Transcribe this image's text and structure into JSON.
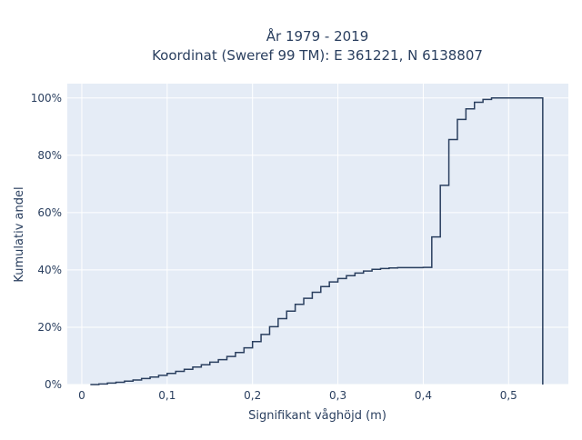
{
  "chart_data": {
    "type": "line",
    "line_shape": "step",
    "title_line1": "År 1979 - 2019",
    "title_line2": "Koordinat (Sweref 99 TM): E 361221, N 6138807",
    "xlabel": "Signifikant våghöjd (m)",
    "ylabel": "Kumulativ andel",
    "xlim": [
      -0.017,
      0.57
    ],
    "ylim": [
      0,
      1.05
    ],
    "x_tick_values": [
      0,
      0.1,
      0.2,
      0.3,
      0.4,
      0.5
    ],
    "x_tick_labels": [
      "0",
      "0,1",
      "0,2",
      "0,3",
      "0,4",
      "0,5"
    ],
    "y_tick_values": [
      0,
      0.2,
      0.4,
      0.6,
      0.8,
      1.0
    ],
    "y_tick_labels": [
      "0%",
      "20%",
      "40%",
      "60%",
      "80%",
      "100%"
    ],
    "grid": true,
    "colors": {
      "plot_bg": "#e5ecf6",
      "grid": "#ffffff",
      "line": "#2a3f5f"
    },
    "series": [
      {
        "x": [
          0.01,
          0.02,
          0.03,
          0.04,
          0.05,
          0.06,
          0.07,
          0.08,
          0.09,
          0.1,
          0.11,
          0.12,
          0.13,
          0.14,
          0.15,
          0.16,
          0.17,
          0.18,
          0.19,
          0.2,
          0.21,
          0.22,
          0.23,
          0.24,
          0.25,
          0.26,
          0.27,
          0.28,
          0.29,
          0.3,
          0.31,
          0.32,
          0.33,
          0.34,
          0.35,
          0.36,
          0.37,
          0.38,
          0.39,
          0.4,
          0.41,
          0.42,
          0.43,
          0.44,
          0.45,
          0.46,
          0.47,
          0.48,
          0.49,
          0.5,
          0.51,
          0.52,
          0.53,
          0.54
        ],
        "y": [
          0.0,
          0.002,
          0.005,
          0.008,
          0.012,
          0.016,
          0.021,
          0.026,
          0.032,
          0.039,
          0.046,
          0.053,
          0.061,
          0.069,
          0.078,
          0.087,
          0.098,
          0.112,
          0.128,
          0.15,
          0.175,
          0.202,
          0.23,
          0.256,
          0.28,
          0.301,
          0.322,
          0.342,
          0.358,
          0.37,
          0.38,
          0.389,
          0.396,
          0.402,
          0.405,
          0.407,
          0.408,
          0.408,
          0.408,
          0.409,
          0.515,
          0.695,
          0.855,
          0.925,
          0.962,
          0.985,
          0.995,
          1.0,
          1.0,
          1.0,
          1.0,
          1.0,
          1.0,
          0.0
        ]
      }
    ]
  }
}
